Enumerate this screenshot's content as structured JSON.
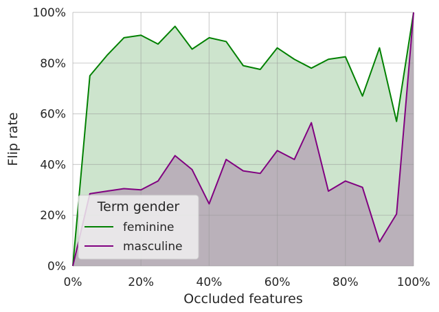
{
  "chart_data": {
    "type": "area",
    "xlabel": "Occluded features",
    "ylabel": "Flip rate",
    "xlim": [
      0,
      1
    ],
    "ylim": [
      0,
      1
    ],
    "xticks": [
      {
        "value": 0.0,
        "label": "0%"
      },
      {
        "value": 0.2,
        "label": "20%"
      },
      {
        "value": 0.4,
        "label": "40%"
      },
      {
        "value": 0.6,
        "label": "60%"
      },
      {
        "value": 0.8,
        "label": "80%"
      },
      {
        "value": 1.0,
        "label": "100%"
      }
    ],
    "yticks": [
      {
        "value": 0.0,
        "label": "0%"
      },
      {
        "value": 0.2,
        "label": "20%"
      },
      {
        "value": 0.4,
        "label": "40%"
      },
      {
        "value": 0.6,
        "label": "60%"
      },
      {
        "value": 0.8,
        "label": "80%"
      },
      {
        "value": 1.0,
        "label": "100%"
      }
    ],
    "grid": true,
    "legend": {
      "title": "Term gender",
      "placement": "lower-left"
    },
    "x": [
      0.0,
      0.05,
      0.1,
      0.15,
      0.2,
      0.25,
      0.3,
      0.35,
      0.4,
      0.45,
      0.5,
      0.55,
      0.6,
      0.65,
      0.7,
      0.75,
      0.8,
      0.85,
      0.9,
      0.95,
      1.0
    ],
    "series": [
      {
        "name": "feminine",
        "color": "#008000",
        "fill": "#cde4cd",
        "values": [
          0.0,
          0.75,
          0.83,
          0.9,
          0.91,
          0.875,
          0.945,
          0.855,
          0.9,
          0.885,
          0.79,
          0.775,
          0.86,
          0.815,
          0.78,
          0.815,
          0.825,
          0.67,
          0.86,
          0.57,
          1.0
        ]
      },
      {
        "name": "masculine",
        "color": "#800080",
        "fill": "#bab1ba",
        "values": [
          0.0,
          0.285,
          0.295,
          0.305,
          0.3,
          0.335,
          0.435,
          0.38,
          0.245,
          0.42,
          0.375,
          0.365,
          0.455,
          0.42,
          0.565,
          0.295,
          0.335,
          0.31,
          0.095,
          0.205,
          1.0
        ]
      }
    ]
  }
}
